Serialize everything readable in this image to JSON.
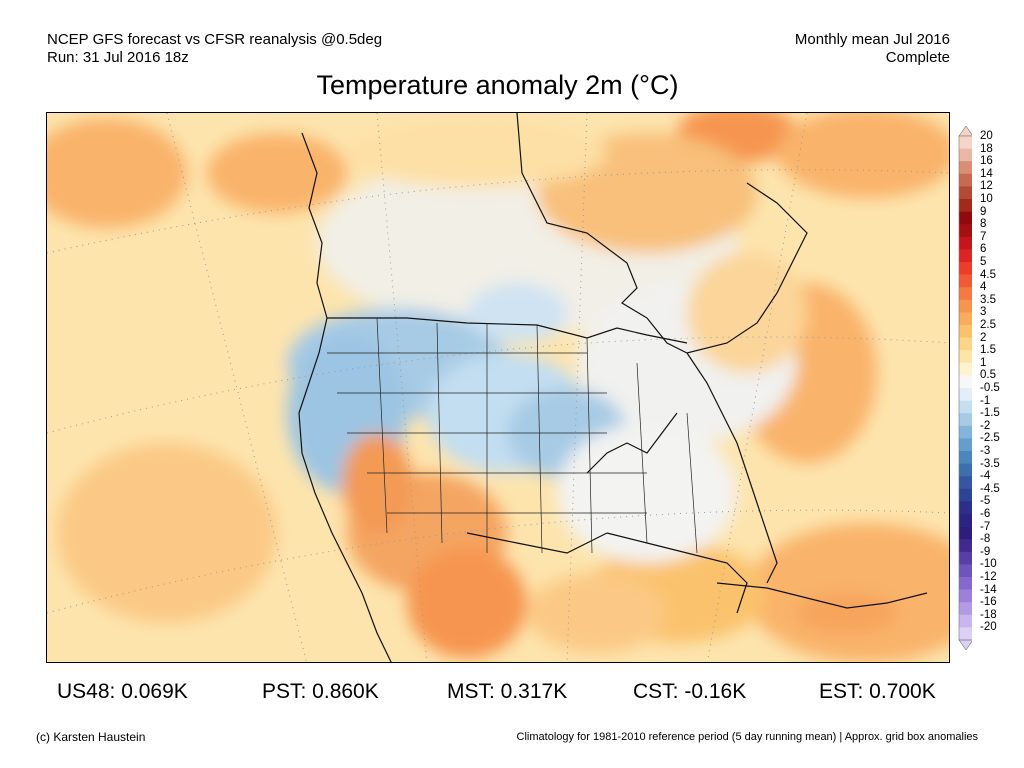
{
  "header": {
    "line1": "NCEP GFS forecast vs CFSR reanalysis @0.5deg",
    "line2": "Run: 31 Jul 2016 18z",
    "right_line1": "Monthly mean Jul 2016",
    "right_line2": "Complete"
  },
  "title": "Temperature anomaly 2m (°C)",
  "legend": {
    "labels": [
      "20",
      "18",
      "16",
      "14",
      "12",
      "10",
      "9",
      "8",
      "7",
      "6",
      "5",
      "4.5",
      "4",
      "3.5",
      "3",
      "2.5",
      "2",
      "1.5",
      "1",
      "0.5",
      "-0.5",
      "-1",
      "-1.5",
      "-2",
      "-2.5",
      "-3",
      "-3.5",
      "-4",
      "-4.5",
      "-5",
      "-6",
      "-7",
      "-8",
      "-9",
      "-10",
      "-12",
      "-14",
      "-16",
      "-18",
      "-20"
    ],
    "colors": [
      "#f6d4c8",
      "#ebb8a6",
      "#d88f77",
      "#c66a53",
      "#b34a36",
      "#a02a1c",
      "#8e0a0c",
      "#a40f14",
      "#c5141c",
      "#dd2424",
      "#ec3d2c",
      "#f25a37",
      "#f47a45",
      "#f6954f",
      "#f8ad5c",
      "#fac26d",
      "#fcd588",
      "#fde5a8",
      "#fef2cf",
      "#f7f7f7",
      "#e2eef8",
      "#c6dff0",
      "#a7cbe5",
      "#84b5d9",
      "#649ecb",
      "#4d86bb",
      "#3e6fab",
      "#3457a0",
      "#2f4395",
      "#2c2f88",
      "#2b2480",
      "#2f1d7a",
      "#3f2b8c",
      "#5640a4",
      "#6d55bb",
      "#8569cd",
      "#9c80da",
      "#b39ae4",
      "#c9b6ee",
      "#ddd0f6"
    ]
  },
  "stats": [
    {
      "label": "US48: 0.069K"
    },
    {
      "label": "PST: 0.860K"
    },
    {
      "label": "MST: 0.317K"
    },
    {
      "label": "CST: -0.16K"
    },
    {
      "label": "EST: 0.700K"
    }
  ],
  "footer": {
    "left": "(c) Karsten Haustein",
    "right": "Climatology for 1981-2010 reference period (5 day running mean) | Approx. grid box anomalies"
  },
  "colors": {
    "ocean_warm": "#fde4ad",
    "warm": "#f9b36b",
    "hot": "#f08b4a",
    "neutral": "#f4f4f4",
    "cool": "#c8e0f1",
    "cold": "#8ebfe0"
  }
}
